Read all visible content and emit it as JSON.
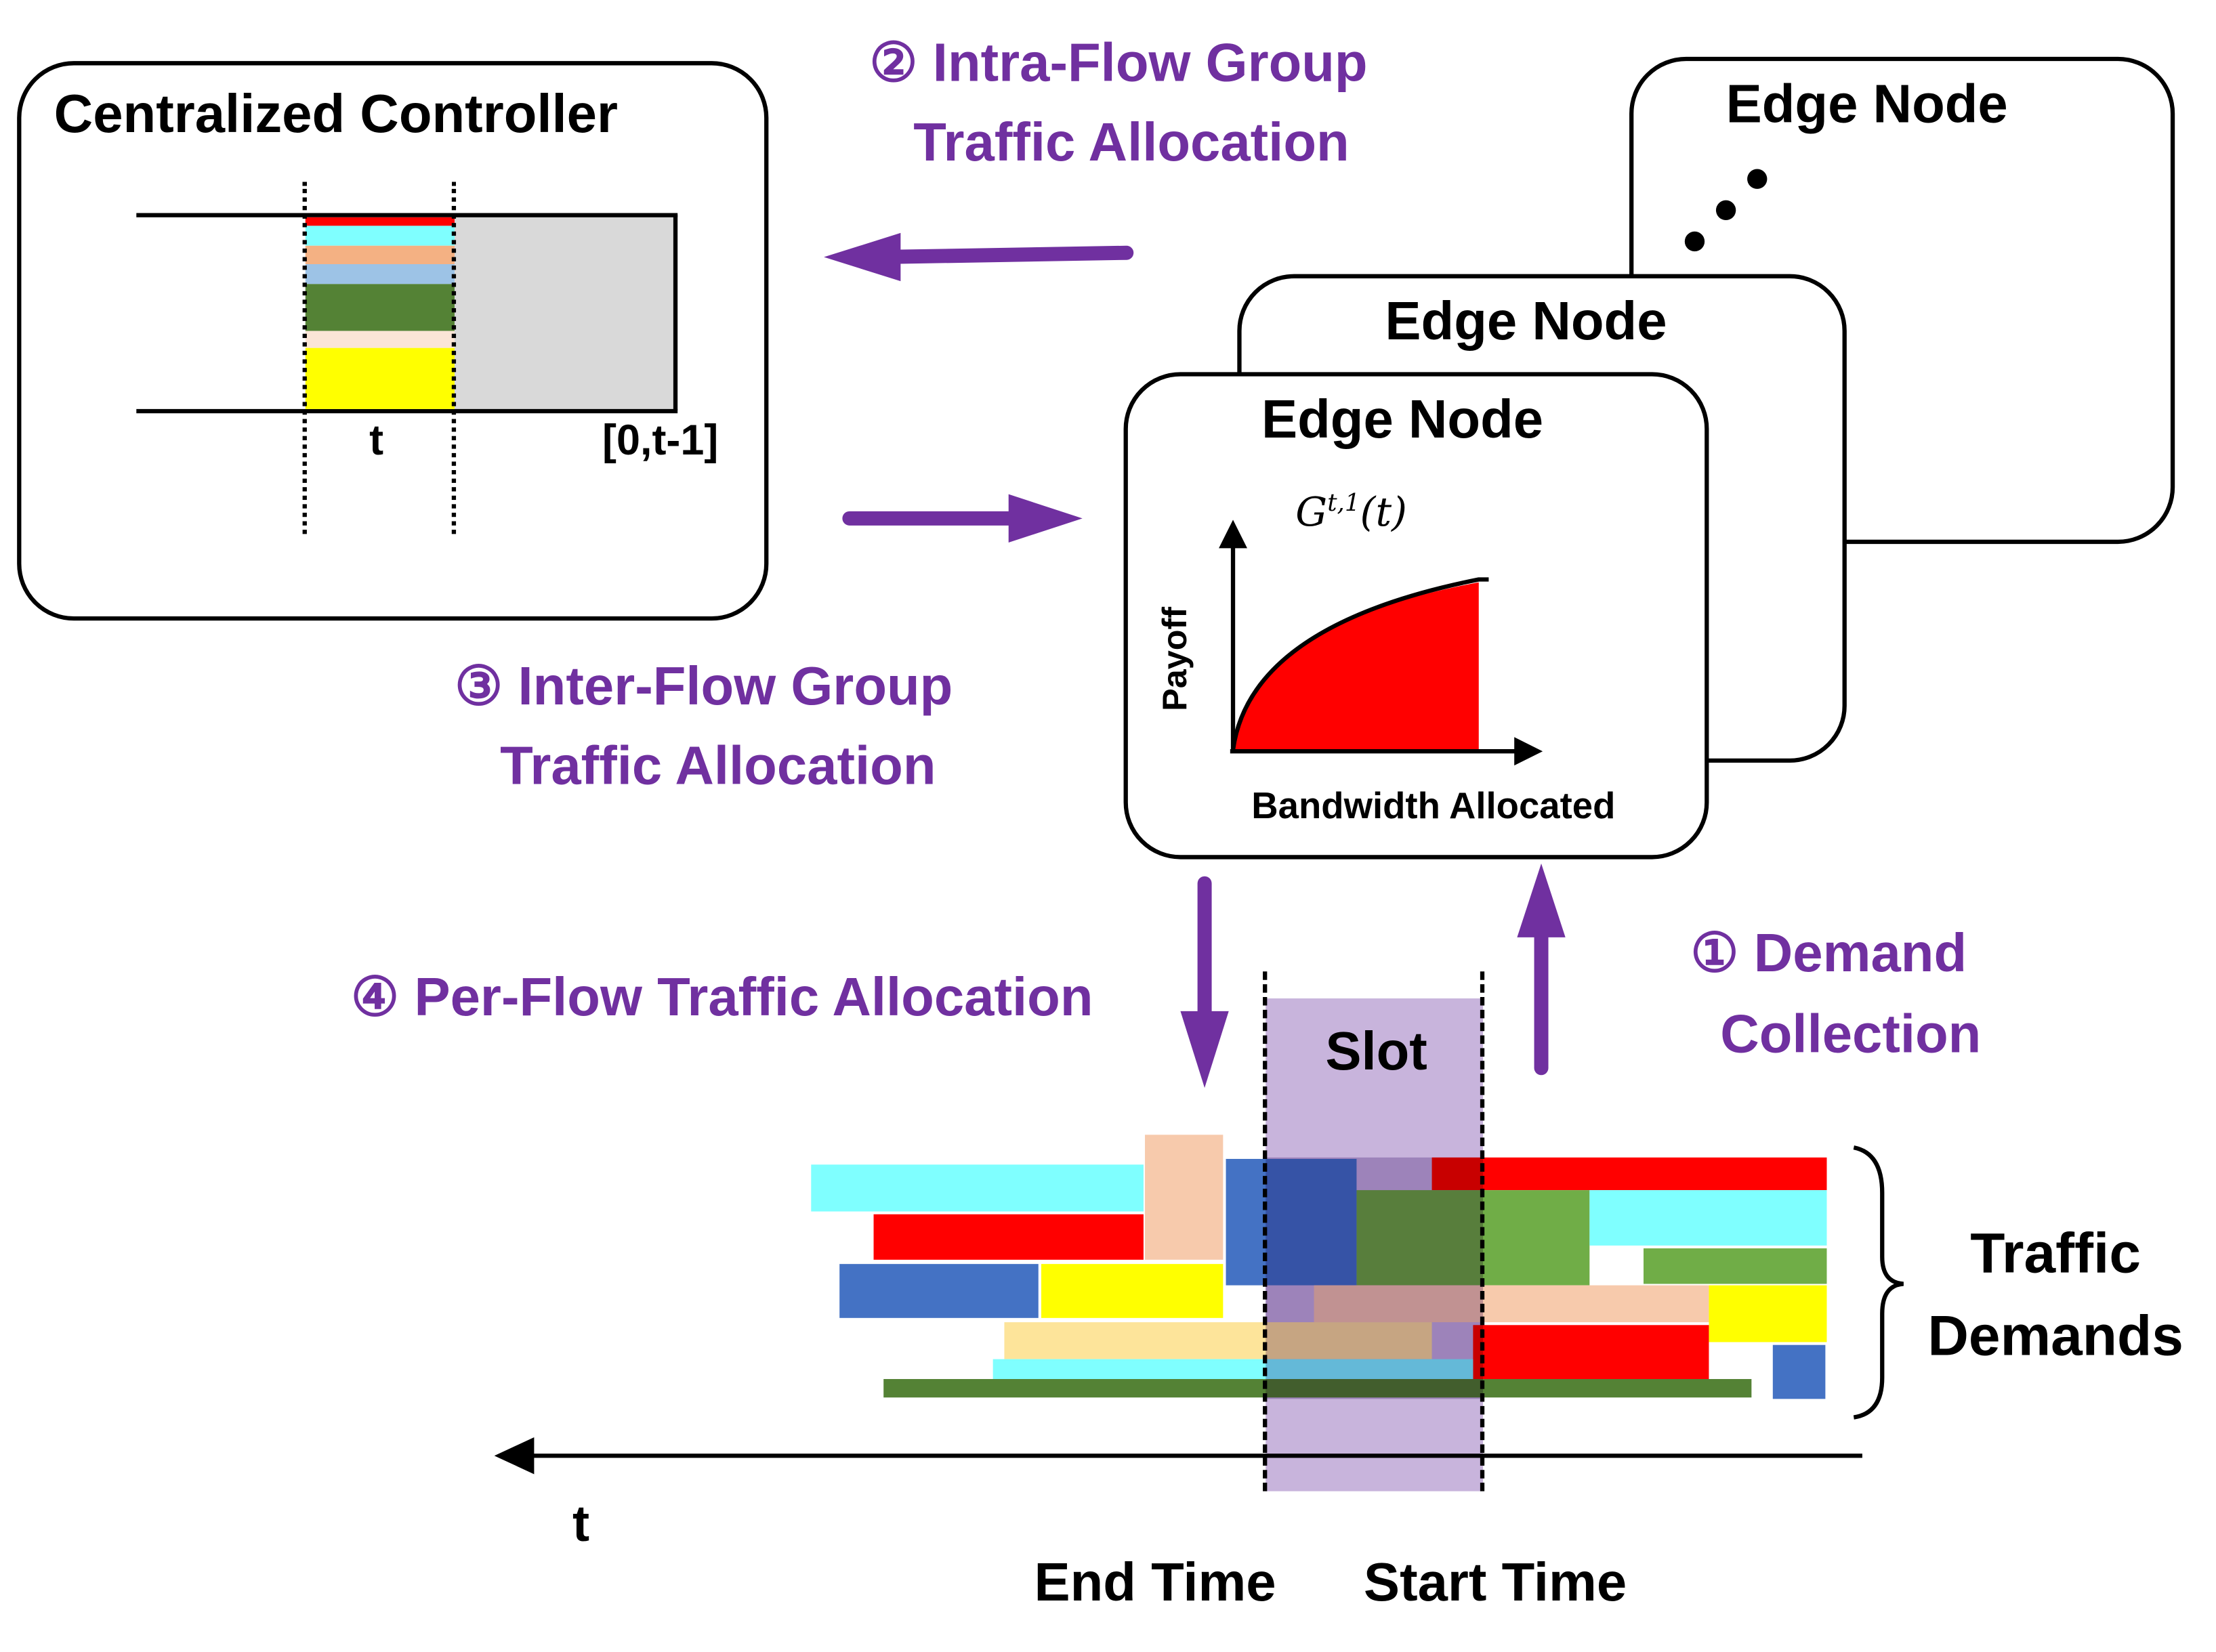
{
  "controller": {
    "title": "Centralized Controller",
    "t_label": "t",
    "range_label": "[0,t-1]"
  },
  "steps": {
    "step1": {
      "line1": "① Demand",
      "line2": "Collection"
    },
    "step2": {
      "line1": "② Intra-Flow Group",
      "line2": "Traffic Allocation"
    },
    "step3": {
      "line1": "③ Inter-Flow Group",
      "line2": "Traffic Allocation"
    },
    "step4": {
      "line1": "④ Per-Flow Traffic Allocation"
    }
  },
  "edge_nodes": [
    {
      "title": "Edge Node"
    },
    {
      "title": "Edge Node"
    },
    {
      "title": "Edge Node"
    }
  ],
  "payoff_chart": {
    "curve_label": "G",
    "curve_sup": "t,1",
    "curve_arg": "(t)",
    "ylabel": "Payoff",
    "xlabel": "Bandwidth Allocated"
  },
  "timeline": {
    "slot_label": "Slot",
    "axis_label": "t",
    "end_label": "End Time",
    "start_label": "Start Time",
    "demands_line1": "Traffic",
    "demands_line2": "Demands"
  },
  "colors": {
    "accent": "#7030a0",
    "slot": "#c8b4dc",
    "red": "#ff0000",
    "cyan": "#7fffff",
    "blue": "#4472c4",
    "yellow": "#ffff00",
    "peach": "#f7caac",
    "green": "#70ad47",
    "dark_green": "#548235"
  }
}
